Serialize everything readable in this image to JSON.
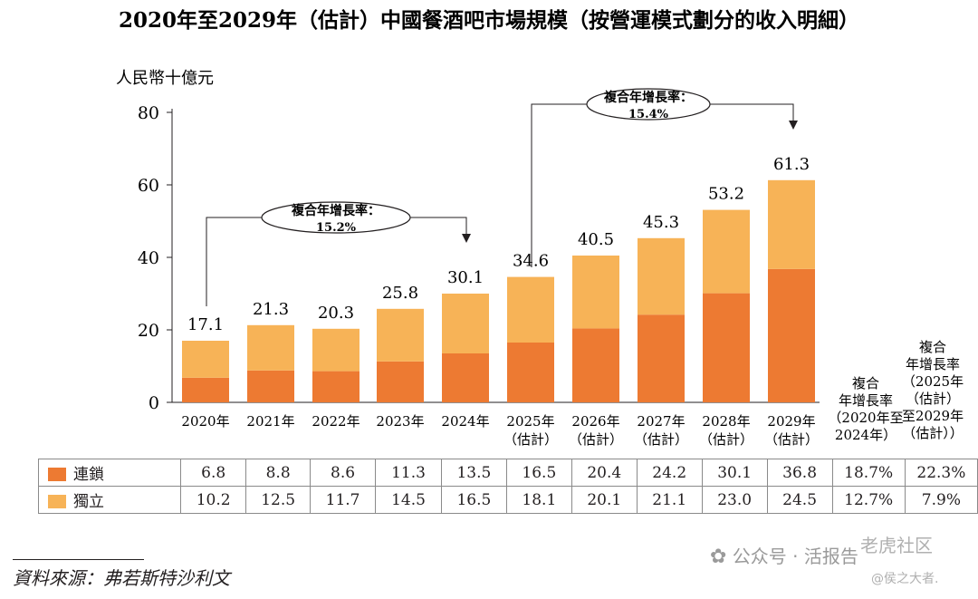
{
  "chart_data": {
    "type": "bar",
    "stacked": true,
    "title": "2020年至2029年（估計）中國餐酒吧市場規模（按營運模式劃分的收入明細）",
    "ylabel": "人民幣十億元",
    "ylim": [
      0,
      80
    ],
    "yticks": [
      "0",
      "20",
      "40",
      "60",
      "80"
    ],
    "categories": [
      [
        "2020年"
      ],
      [
        "2021年"
      ],
      [
        "2022年"
      ],
      [
        "2023年"
      ],
      [
        "2024年"
      ],
      [
        "2025年",
        "（估計）"
      ],
      [
        "2026年",
        "（估計）"
      ],
      [
        "2027年",
        "（估計）"
      ],
      [
        "2028年",
        "（估計）"
      ],
      [
        "2029年",
        "（估計）"
      ]
    ],
    "series": [
      {
        "name": "連鎖",
        "color": "#ed7a32",
        "values": [
          6.8,
          8.8,
          8.6,
          11.3,
          13.5,
          16.5,
          20.4,
          24.2,
          30.1,
          36.8
        ]
      },
      {
        "name": "獨立",
        "color": "#f7b357",
        "values": [
          10.2,
          12.5,
          11.7,
          14.5,
          16.5,
          18.1,
          20.1,
          21.1,
          23.0,
          24.5
        ]
      }
    ],
    "totals": [
      "17.1",
      "21.3",
      "20.3",
      "25.8",
      "30.1",
      "34.6",
      "40.5",
      "45.3",
      "53.2",
      "61.3"
    ],
    "cagr_annotations": [
      {
        "label": "複合年增長率：",
        "value": "15.2%",
        "from": 0,
        "to": 4
      },
      {
        "label": "複合年增長率：",
        "value": "15.4%",
        "from": 5,
        "to": 9
      }
    ],
    "cagr_columns": [
      {
        "header": [
          "複合",
          "年增長率",
          "（2020年至",
          "2024年）"
        ],
        "values": [
          "18.7%",
          "12.7%"
        ]
      },
      {
        "header": [
          "複合",
          "年增長率",
          "（2025年",
          "（估計）",
          "至2029年",
          "（估計））"
        ],
        "values": [
          "22.3%",
          "7.9%"
        ]
      }
    ],
    "table_rows": [
      {
        "label": "連鎖",
        "values": [
          "6.8",
          "8.8",
          "8.6",
          "11.3",
          "13.5",
          "16.5",
          "20.4",
          "24.2",
          "30.1",
          "36.8",
          "18.7%",
          "22.3%"
        ]
      },
      {
        "label": "獨立",
        "values": [
          "10.2",
          "12.5",
          "11.7",
          "14.5",
          "16.5",
          "18.1",
          "20.1",
          "21.1",
          "23.0",
          "24.5",
          "12.7%",
          "7.9%"
        ]
      }
    ]
  },
  "source": "資料來源：弗若斯特沙利文",
  "watermark": {
    "wechat": "公众号 · 活报告",
    "community": "老虎社区",
    "handle": "@侯之大者."
  }
}
